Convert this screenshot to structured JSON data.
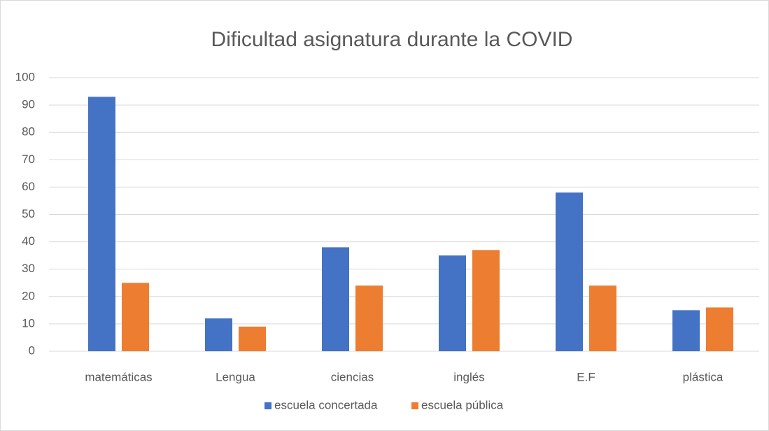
{
  "chart_data": {
    "type": "bar",
    "title": "Dificultad asignatura durante la COVID",
    "categories": [
      "matemáticas",
      "Lengua",
      "ciencias",
      "inglés",
      "E.F",
      "plástica"
    ],
    "series": [
      {
        "name": "escuela concertada",
        "color": "#4472c4",
        "values": [
          93,
          12,
          38,
          35,
          58,
          15
        ]
      },
      {
        "name": "escuela pública",
        "color": "#ed7d31",
        "values": [
          25,
          9,
          24,
          37,
          24,
          16
        ]
      }
    ],
    "ylim": [
      0,
      100
    ],
    "yticks": [
      0,
      10,
      20,
      30,
      40,
      50,
      60,
      70,
      80,
      90,
      100
    ],
    "grid": true,
    "legend": "bottom"
  }
}
